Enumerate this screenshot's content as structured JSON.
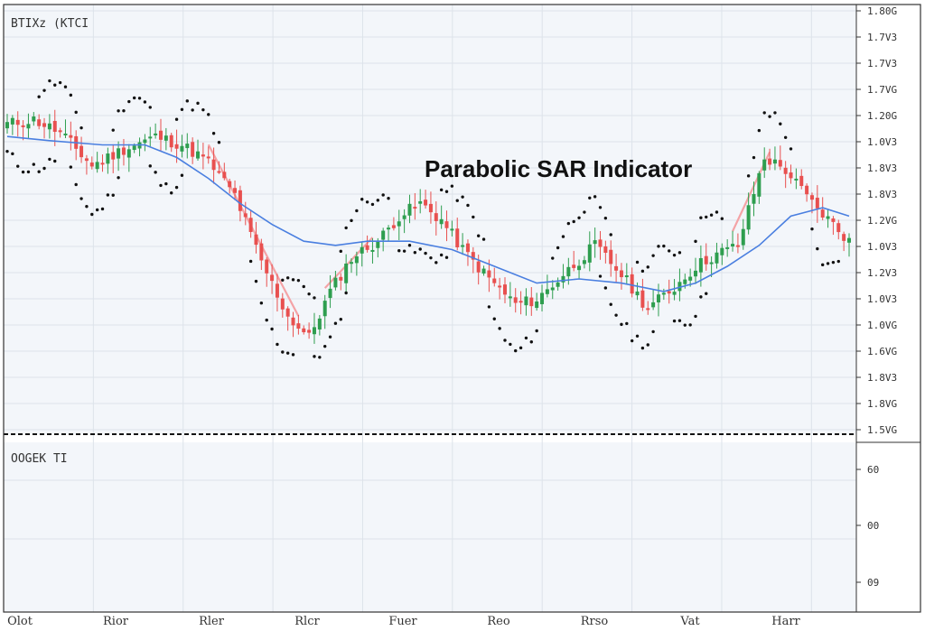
{
  "chart_data": {
    "type": "candlestick",
    "title": "Parabolic SAR Indicator",
    "symbol_label": "BTIXz (KTCI",
    "sub_pane_label": "OOGEK TI",
    "y_ticks": [
      "1.80G",
      "1.7V3",
      "1.7V3",
      "1.7VG",
      "1.20G",
      "1.0V3",
      "1.8V3",
      "1.8V3",
      "1.2VG",
      "1.0V3",
      "1.2V3",
      "1.0V3",
      "1.0VG",
      "1.6VG",
      "1.8V3",
      "1.8VG",
      "1.5VG"
    ],
    "sub_y_ticks": [
      "60",
      "00",
      "09"
    ],
    "x_ticks": [
      "Olot",
      "Rior",
      "Rler",
      "Rlcr",
      "Fuer",
      "Reo",
      "Rrso",
      "Vat",
      "Harr"
    ],
    "ylim": [
      0,
      100
    ],
    "grid": true,
    "colors": {
      "up": "#2e9e4f",
      "down": "#e8504f",
      "moving_average": "#4a7fe0",
      "sar_dots": "#111111",
      "trend_line": "#f4a3a6",
      "grid": "#dde3ea",
      "background": "#f3f6fa",
      "divider": "#111111"
    },
    "series": [
      {
        "type": "candles",
        "count": 160,
        "close_path": [
          [
            0,
            73
          ],
          [
            5,
            74
          ],
          [
            10,
            71
          ],
          [
            16,
            63
          ],
          [
            22,
            67
          ],
          [
            28,
            70
          ],
          [
            33,
            68
          ],
          [
            38,
            64
          ],
          [
            43,
            56
          ],
          [
            48,
            40
          ],
          [
            53,
            27
          ],
          [
            57,
            22
          ],
          [
            61,
            33
          ],
          [
            65,
            41
          ],
          [
            70,
            45
          ],
          [
            74,
            51
          ],
          [
            78,
            54
          ],
          [
            82,
            50
          ],
          [
            86,
            43
          ],
          [
            91,
            36
          ],
          [
            96,
            30
          ],
          [
            100,
            31
          ],
          [
            105,
            37
          ],
          [
            111,
            44
          ],
          [
            116,
            37
          ],
          [
            121,
            29
          ],
          [
            126,
            34
          ],
          [
            130,
            39
          ],
          [
            134,
            42
          ],
          [
            138,
            44
          ],
          [
            143,
            65
          ],
          [
            147,
            62
          ],
          [
            152,
            54
          ],
          [
            156,
            49
          ],
          [
            159,
            45
          ]
        ]
      },
      {
        "type": "moving_average",
        "points": [
          [
            0,
            70
          ],
          [
            8,
            69
          ],
          [
            18,
            68
          ],
          [
            26,
            68
          ],
          [
            32,
            65
          ],
          [
            38,
            60
          ],
          [
            44,
            54
          ],
          [
            50,
            49
          ],
          [
            56,
            45
          ],
          [
            62,
            44
          ],
          [
            68,
            45
          ],
          [
            76,
            45
          ],
          [
            84,
            43
          ],
          [
            92,
            39
          ],
          [
            100,
            35
          ],
          [
            108,
            36
          ],
          [
            116,
            35
          ],
          [
            124,
            33
          ],
          [
            130,
            35
          ],
          [
            136,
            39
          ],
          [
            142,
            44
          ],
          [
            148,
            51
          ],
          [
            154,
            53
          ],
          [
            159,
            51
          ]
        ]
      },
      {
        "type": "parabolic_sar_dots",
        "arcs": [
          {
            "range": [
              0,
              9
            ],
            "side": "below"
          },
          {
            "range": [
              6,
              14
            ],
            "side": "above"
          },
          {
            "range": [
              12,
              21
            ],
            "side": "below"
          },
          {
            "range": [
              20,
              27
            ],
            "side": "above"
          },
          {
            "range": [
              27,
              33
            ],
            "side": "below"
          },
          {
            "range": [
              32,
              40
            ],
            "side": "above"
          },
          {
            "range": [
              46,
              54
            ],
            "side": "below"
          },
          {
            "range": [
              52,
              58
            ],
            "side": "above"
          },
          {
            "range": [
              58,
              64
            ],
            "side": "below"
          },
          {
            "range": [
              63,
              72
            ],
            "side": "above"
          },
          {
            "range": [
              74,
              83
            ],
            "side": "below"
          },
          {
            "range": [
              82,
              90
            ],
            "side": "above"
          },
          {
            "range": [
              91,
              100
            ],
            "side": "below"
          },
          {
            "range": [
              103,
              114
            ],
            "side": "above"
          },
          {
            "range": [
              112,
              122
            ],
            "side": "below"
          },
          {
            "range": [
              119,
              127
            ],
            "side": "above"
          },
          {
            "range": [
              126,
              132
            ],
            "side": "below"
          },
          {
            "range": [
              130,
              135
            ],
            "side": "above"
          },
          {
            "range": [
              140,
              148
            ],
            "side": "above"
          },
          {
            "range": [
              152,
              157
            ],
            "side": "below"
          }
        ]
      }
    ]
  }
}
